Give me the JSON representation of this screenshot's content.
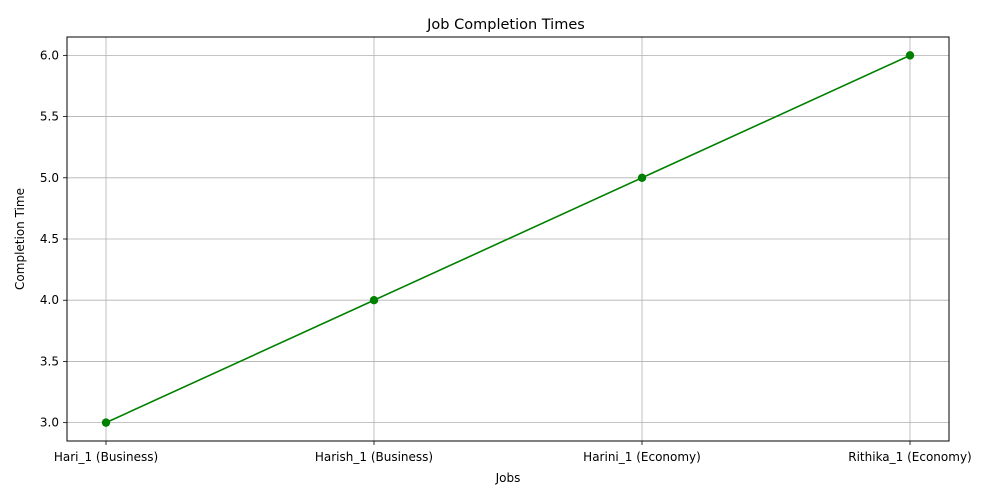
{
  "chart_data": {
    "type": "line",
    "title": "Job Completion Times",
    "xlabel": "Jobs",
    "ylabel": "Completion Time",
    "categories": [
      "Hari_1 (Business)",
      "Harish_1 (Business)",
      "Harini_1 (Economy)",
      "Rithika_1 (Economy)"
    ],
    "series": [
      {
        "values": [
          3,
          4,
          5,
          6
        ],
        "color": "#008000",
        "marker": "circle"
      }
    ],
    "ylim": [
      2.85,
      6.15
    ],
    "yticks": [
      3.0,
      3.5,
      4.0,
      4.5,
      5.0,
      5.5,
      6.0
    ],
    "ytick_labels": [
      "3.0",
      "3.5",
      "4.0",
      "4.5",
      "5.0",
      "5.5",
      "6.0"
    ],
    "grid": true
  }
}
